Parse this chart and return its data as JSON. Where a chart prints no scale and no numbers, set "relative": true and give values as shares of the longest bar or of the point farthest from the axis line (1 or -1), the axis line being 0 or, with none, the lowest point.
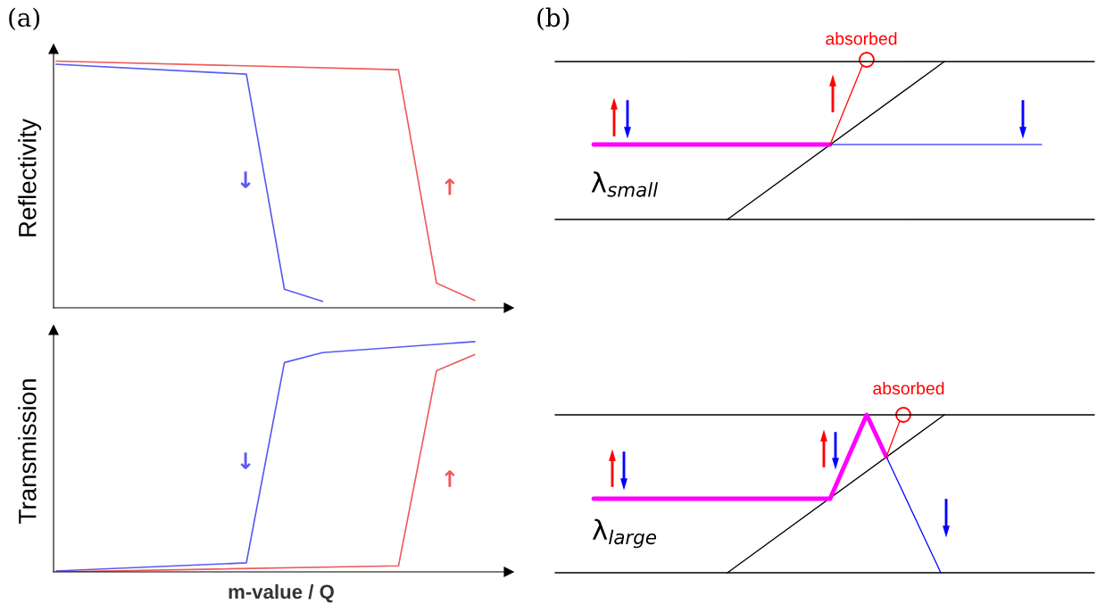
{
  "chart_data": [
    {
      "type": "line",
      "relative": true,
      "ylabel": "Reflectivity",
      "annotations": [
        "(a)"
      ],
      "tick_labels": false,
      "categories": [
        null,
        null,
        null,
        null,
        null,
        null,
        null,
        null,
        null,
        null,
        null,
        null
      ],
      "series": [
        {
          "name": "↓",
          "color": "#5a5af0",
          "values": [
            0.987,
            null,
            null,
            null,
            null,
            0.947,
            0.075,
            0.026,
            null,
            null,
            null,
            null
          ]
        },
        {
          "name": "↑",
          "color": "#f05a5a",
          "values": [
            1,
            null,
            null,
            null,
            null,
            null,
            null,
            null,
            null,
            0.965,
            0.1,
            0.03
          ]
        }
      ]
    },
    {
      "type": "line",
      "relative": true,
      "ylabel": "Transmission",
      "xlabel": "m-value / Q",
      "tick_labels": false,
      "categories": [
        null,
        null,
        null,
        null,
        null,
        null,
        null,
        null,
        null,
        null,
        null,
        null
      ],
      "series": [
        {
          "name": "↓",
          "color": "#5a5af0",
          "values": [
            0.004,
            null,
            null,
            null,
            null,
            0.039,
            0.909,
            0.952,
            null,
            null,
            null,
            1
          ]
        },
        {
          "name": "↑",
          "color": "#f05a5a",
          "values": [
            0,
            null,
            null,
            null,
            null,
            null,
            null,
            null,
            null,
            0.026,
            0.874,
            0.943
          ]
        }
      ]
    },
    {
      "type": "other",
      "annotations": [
        "(b)",
        "absorbed",
        "λ$_{small}$",
        "absorbed",
        "λ$_{large}$"
      ]
    }
  ]
}
